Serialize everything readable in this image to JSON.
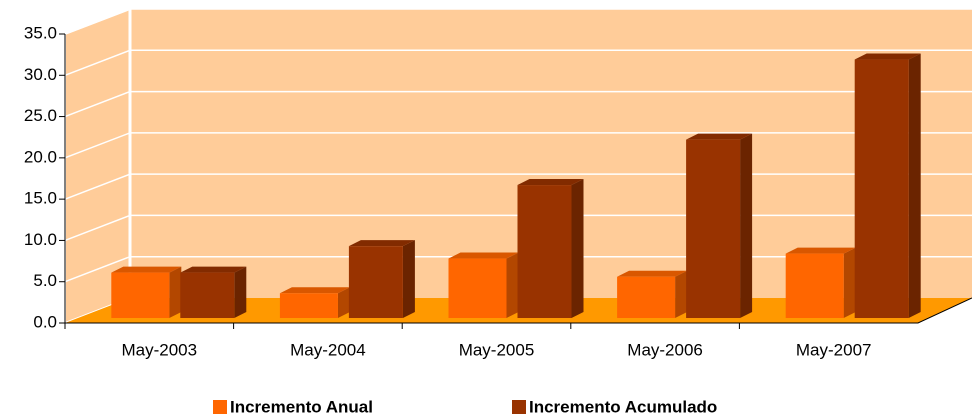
{
  "chart_data": {
    "type": "bar3d",
    "categories": [
      "May-2003",
      "May-2004",
      "May-2005",
      "May-2006",
      "May-2007"
    ],
    "series": [
      {
        "name": "Incremento Anual",
        "color": "#ff6600",
        "values": [
          5.5,
          3.0,
          7.2,
          5.0,
          7.8
        ]
      },
      {
        "name": "Incremento Acumulado",
        "color": "#993300",
        "values": [
          5.5,
          8.7,
          16.1,
          21.6,
          31.3
        ]
      }
    ],
    "ylim": [
      0,
      35
    ],
    "yticks": [
      {
        "value": 0,
        "label": "0.0"
      },
      {
        "value": 5,
        "label": "5.0"
      },
      {
        "value": 10,
        "label": "10.0"
      },
      {
        "value": 15,
        "label": "15.0"
      },
      {
        "value": 20,
        "label": "20.0"
      },
      {
        "value": 25,
        "label": "25.0"
      },
      {
        "value": 30,
        "label": "30.0"
      },
      {
        "value": 35,
        "label": "35.0"
      }
    ],
    "grid": true,
    "legend": "bottom"
  }
}
